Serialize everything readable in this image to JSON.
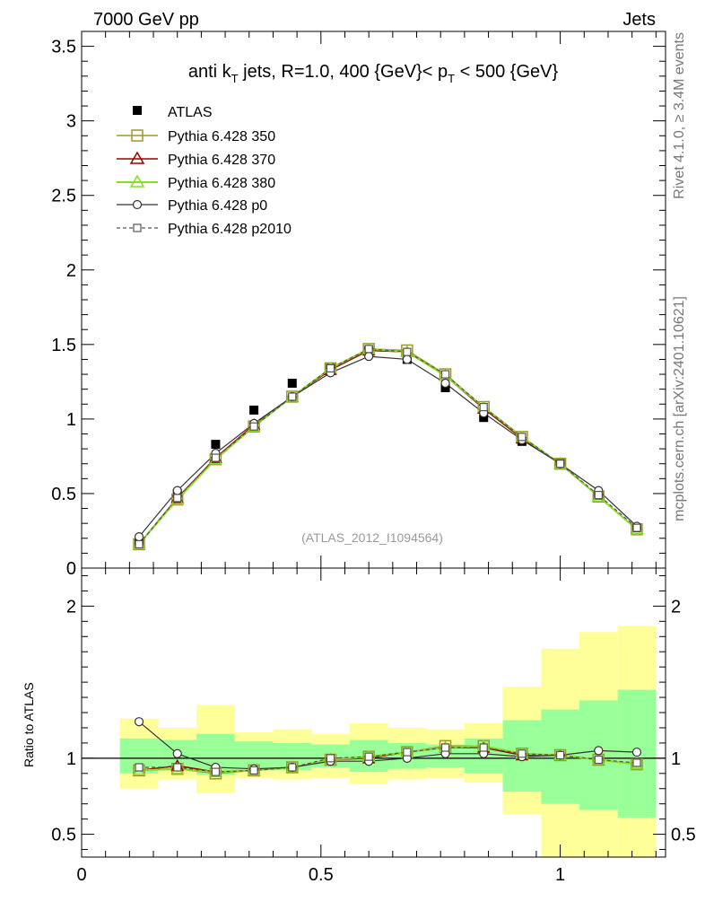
{
  "header": {
    "left": "7000 GeV pp",
    "right": "Jets"
  },
  "side_labels": {
    "rivet": "Rivet 4.1.0, ≥ 3.4M events",
    "mcplots": "mcplots.cern.ch [arXiv:2401.10621]"
  },
  "colors": {
    "atlas": "#000000",
    "p350": "#9a9a2a",
    "p370": "#990000",
    "p380": "#88dd22",
    "p0": "#333333",
    "p2010": "#555555",
    "band_inner": "#99ff99",
    "band_outer": "#ffff99"
  },
  "chart_data": [
    {
      "type": "line",
      "title": "anti k_T jets, R=1.0,  400 {GeV}< p_T < 500 {GeV}",
      "title_parts": {
        "a": "anti k",
        "a_sub": "T",
        "b": " jets, R=1.0,  400 {GeV}< p",
        "b_sub": "T",
        "c": " < 500 {GeV}"
      },
      "xlabel": "",
      "ylabel": "",
      "xlim": [
        0,
        1.22
      ],
      "ylim": [
        0,
        3.6
      ],
      "y_ticks": [
        "0",
        "0.5",
        "1",
        "1.5",
        "2",
        "2.5",
        "3",
        "3.5"
      ],
      "watermark": "(ATLAS_2012_I1094564)",
      "legend_position": "top-left",
      "x": [
        0.12,
        0.2,
        0.28,
        0.36,
        0.44,
        0.52,
        0.6,
        0.68,
        0.76,
        0.84,
        0.92,
        1.0,
        1.08,
        1.16
      ],
      "series": [
        {
          "name": "ATLAS",
          "key": "atlas",
          "values": [
            0.17,
            0.5,
            0.83,
            1.06,
            1.24,
            1.34,
            1.46,
            1.4,
            1.21,
            1.01,
            0.85,
            0.7,
            0.49,
            0.27
          ]
        },
        {
          "name": "Pythia 6.428 350",
          "key": "p350",
          "values": [
            0.16,
            0.46,
            0.73,
            0.95,
            1.15,
            1.34,
            1.47,
            1.46,
            1.3,
            1.08,
            0.88,
            0.7,
            0.48,
            0.26
          ]
        },
        {
          "name": "Pythia 6.428 370",
          "key": "p370",
          "values": [
            0.16,
            0.47,
            0.74,
            0.96,
            1.15,
            1.33,
            1.46,
            1.45,
            1.29,
            1.07,
            0.87,
            0.7,
            0.48,
            0.26
          ]
        },
        {
          "name": "Pythia 6.428 380",
          "key": "p380",
          "values": [
            0.16,
            0.46,
            0.73,
            0.95,
            1.15,
            1.34,
            1.47,
            1.45,
            1.29,
            1.08,
            0.88,
            0.7,
            0.48,
            0.26
          ]
        },
        {
          "name": "Pythia 6.428 p0",
          "key": "p0",
          "values": [
            0.21,
            0.52,
            0.77,
            0.97,
            1.15,
            1.31,
            1.42,
            1.4,
            1.24,
            1.04,
            0.86,
            0.7,
            0.52,
            0.28
          ]
        },
        {
          "name": "Pythia 6.428 p2010",
          "key": "p2010",
          "values": [
            0.16,
            0.47,
            0.74,
            0.95,
            1.15,
            1.34,
            1.47,
            1.45,
            1.3,
            1.08,
            0.88,
            0.7,
            0.49,
            0.27
          ]
        }
      ]
    },
    {
      "type": "line",
      "title": "",
      "xlabel": "",
      "ylabel": "Ratio to ATLAS",
      "xlim": [
        0,
        1.22
      ],
      "ylim": [
        0.35,
        2.25
      ],
      "y_ticks": [
        "0.5",
        "1",
        "2"
      ],
      "x_ticks": [
        "0",
        "0.5",
        "1"
      ],
      "x": [
        0.12,
        0.2,
        0.28,
        0.36,
        0.44,
        0.52,
        0.6,
        0.68,
        0.76,
        0.84,
        0.92,
        1.0,
        1.08,
        1.16
      ],
      "bins": [
        [
          0.08,
          0.16
        ],
        [
          0.16,
          0.24
        ],
        [
          0.24,
          0.32
        ],
        [
          0.32,
          0.4
        ],
        [
          0.4,
          0.48
        ],
        [
          0.48,
          0.56
        ],
        [
          0.56,
          0.64
        ],
        [
          0.64,
          0.72
        ],
        [
          0.72,
          0.8
        ],
        [
          0.8,
          0.88
        ],
        [
          0.88,
          0.96
        ],
        [
          0.96,
          1.04
        ],
        [
          1.04,
          1.12
        ],
        [
          1.12,
          1.2
        ]
      ],
      "band_inner": [
        [
          0.9,
          1.13
        ],
        [
          0.92,
          1.12
        ],
        [
          0.89,
          1.16
        ],
        [
          0.92,
          1.11
        ],
        [
          0.92,
          1.1
        ],
        [
          0.94,
          1.09
        ],
        [
          0.91,
          1.12
        ],
        [
          0.93,
          1.1
        ],
        [
          0.94,
          1.09
        ],
        [
          0.9,
          1.13
        ],
        [
          0.78,
          1.25
        ],
        [
          0.7,
          1.32
        ],
        [
          0.66,
          1.38
        ],
        [
          0.61,
          1.45
        ]
      ],
      "band_outer": [
        [
          0.8,
          1.26
        ],
        [
          0.86,
          1.2
        ],
        [
          0.77,
          1.35
        ],
        [
          0.87,
          1.17
        ],
        [
          0.86,
          1.19
        ],
        [
          0.87,
          1.16
        ],
        [
          0.83,
          1.23
        ],
        [
          0.86,
          1.2
        ],
        [
          0.87,
          1.19
        ],
        [
          0.84,
          1.23
        ],
        [
          0.63,
          1.47
        ],
        [
          0.35,
          1.72
        ],
        [
          0.35,
          1.83
        ],
        [
          0.35,
          1.87
        ]
      ],
      "series": [
        {
          "name": "Pythia 6.428 350",
          "key": "p350",
          "values": [
            0.92,
            0.93,
            0.9,
            0.92,
            0.94,
            0.99,
            1.01,
            1.04,
            1.08,
            1.08,
            1.03,
            1.02,
            0.99,
            0.96
          ]
        },
        {
          "name": "Pythia 6.428 370",
          "key": "p370",
          "values": [
            0.92,
            0.95,
            0.91,
            0.92,
            0.94,
            0.99,
            1.0,
            1.04,
            1.07,
            1.07,
            1.02,
            1.02,
            0.99,
            0.96
          ]
        },
        {
          "name": "Pythia 6.428 380",
          "key": "p380",
          "values": [
            0.92,
            0.93,
            0.91,
            0.92,
            0.94,
            0.99,
            1.01,
            1.04,
            1.07,
            1.08,
            1.03,
            1.02,
            0.99,
            0.96
          ]
        },
        {
          "name": "Pythia 6.428 p0",
          "key": "p0",
          "values": [
            1.24,
            1.03,
            0.94,
            0.93,
            0.94,
            0.98,
            0.98,
            1.0,
            1.03,
            1.03,
            1.01,
            1.02,
            1.05,
            1.04
          ]
        },
        {
          "name": "Pythia 6.428 p2010",
          "key": "p2010",
          "values": [
            0.94,
            0.94,
            0.91,
            0.92,
            0.94,
            1.0,
            1.01,
            1.04,
            1.07,
            1.07,
            1.03,
            1.02,
            0.99,
            0.97
          ]
        }
      ]
    }
  ]
}
